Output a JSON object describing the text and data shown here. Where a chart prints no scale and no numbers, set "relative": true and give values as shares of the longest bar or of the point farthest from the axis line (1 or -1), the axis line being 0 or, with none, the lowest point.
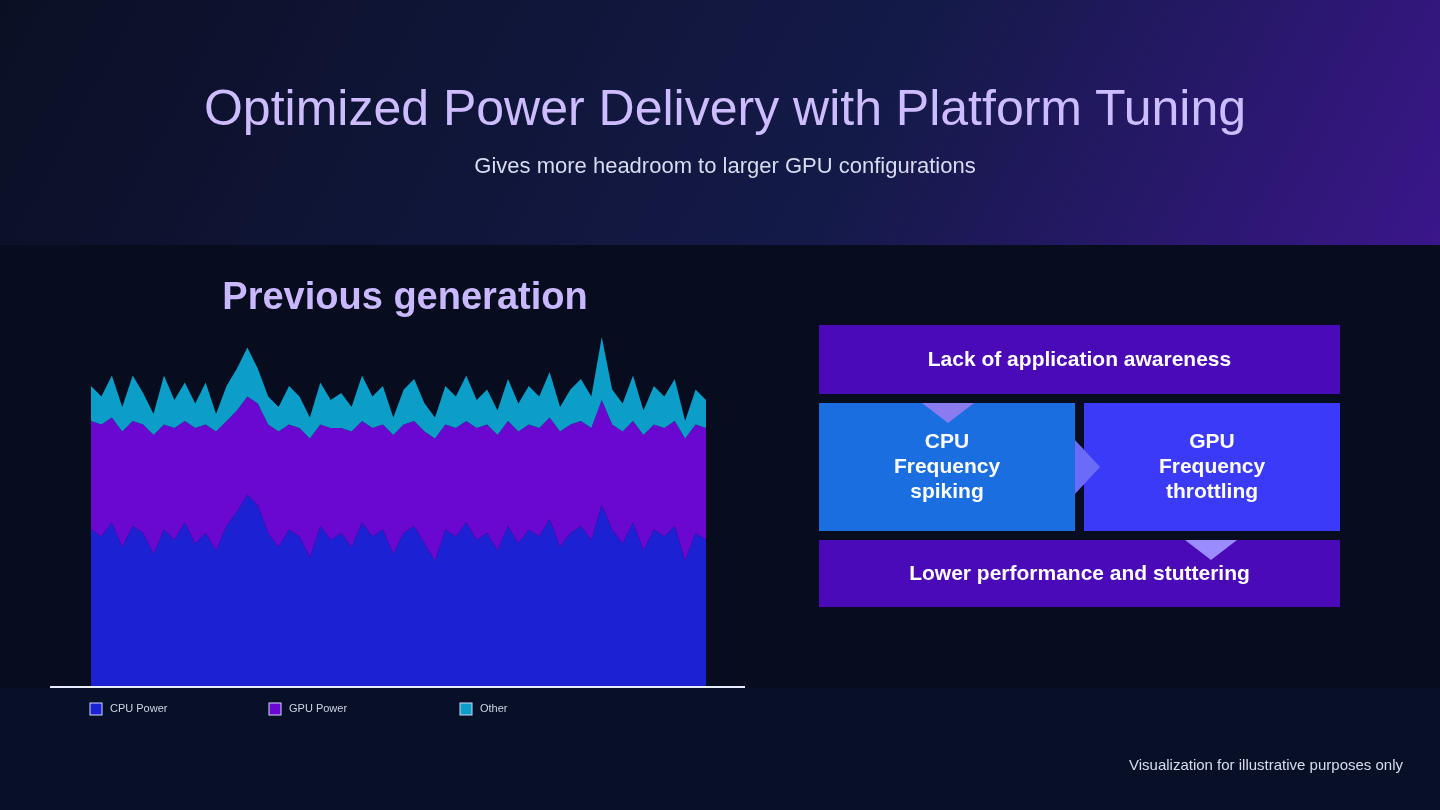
{
  "chart_data": [
    {
      "type": "other",
      "title": "Optimized Power Delivery with Platform Tuning",
      "subtitle": "Gives more headroom to larger GPU configurations",
      "annotations": [
        "Lack of application awareness",
        "CPU\nFrequency\nspiking",
        "GPU\nFrequency\nthrottling",
        "Lower performance and stuttering",
        "Visualization for illustrative purposes only"
      ]
    },
    {
      "type": "area",
      "title": "Previous generation",
      "relative": true,
      "stacked": true,
      "legend": "bottom",
      "categories": [
        null,
        null,
        null,
        null,
        null,
        null,
        null,
        null,
        null,
        null,
        null,
        null,
        null,
        null,
        null,
        null,
        null,
        null,
        null,
        null,
        null,
        null,
        null,
        null,
        null,
        null,
        null,
        null,
        null,
        null,
        null,
        null,
        null,
        null,
        null,
        null,
        null,
        null,
        null,
        null,
        null,
        null,
        null,
        null,
        null,
        null,
        null,
        null,
        null,
        null,
        null,
        null,
        null,
        null,
        null,
        null,
        null,
        null,
        null,
        null
      ],
      "series": [
        {
          "name": "CPU Power",
          "color": "#1c22d4",
          "values": [
            0.45,
            0.43,
            0.47,
            0.4,
            0.46,
            0.44,
            0.38,
            0.45,
            0.42,
            0.47,
            0.41,
            0.44,
            0.39,
            0.46,
            0.5,
            0.55,
            0.52,
            0.44,
            0.4,
            0.45,
            0.43,
            0.37,
            0.46,
            0.42,
            0.44,
            0.4,
            0.47,
            0.43,
            0.45,
            0.38,
            0.44,
            0.46,
            0.41,
            0.36,
            0.45,
            0.43,
            0.47,
            0.42,
            0.44,
            0.39,
            0.46,
            0.41,
            0.45,
            0.43,
            0.48,
            0.4,
            0.44,
            0.46,
            0.42,
            0.52,
            0.45,
            0.41,
            0.47,
            0.39,
            0.45,
            0.43,
            0.46,
            0.36,
            0.44,
            0.42
          ]
        },
        {
          "name": "GPU Power",
          "color": "#6a08d2",
          "values": [
            0.31,
            0.32,
            0.3,
            0.33,
            0.3,
            0.31,
            0.34,
            0.3,
            0.32,
            0.29,
            0.33,
            0.31,
            0.34,
            0.3,
            0.29,
            0.28,
            0.29,
            0.31,
            0.33,
            0.3,
            0.31,
            0.34,
            0.29,
            0.32,
            0.3,
            0.33,
            0.29,
            0.31,
            0.3,
            0.34,
            0.31,
            0.3,
            0.32,
            0.35,
            0.3,
            0.31,
            0.29,
            0.32,
            0.31,
            0.33,
            0.3,
            0.32,
            0.3,
            0.31,
            0.29,
            0.33,
            0.31,
            0.3,
            0.32,
            0.3,
            0.3,
            0.32,
            0.29,
            0.33,
            0.3,
            0.31,
            0.3,
            0.35,
            0.31,
            0.32
          ]
        },
        {
          "name": "Other",
          "color": "#0a9ec8",
          "values": [
            0.1,
            0.08,
            0.12,
            0.07,
            0.13,
            0.09,
            0.06,
            0.14,
            0.08,
            0.11,
            0.07,
            0.12,
            0.05,
            0.1,
            0.12,
            0.14,
            0.1,
            0.08,
            0.07,
            0.11,
            0.09,
            0.06,
            0.12,
            0.08,
            0.1,
            0.07,
            0.13,
            0.09,
            0.11,
            0.05,
            0.1,
            0.12,
            0.08,
            0.06,
            0.11,
            0.09,
            0.13,
            0.08,
            0.1,
            0.07,
            0.12,
            0.08,
            0.11,
            0.09,
            0.13,
            0.07,
            0.1,
            0.12,
            0.09,
            0.18,
            0.1,
            0.08,
            0.13,
            0.07,
            0.11,
            0.09,
            0.12,
            0.05,
            0.1,
            0.08
          ]
        }
      ]
    }
  ]
}
